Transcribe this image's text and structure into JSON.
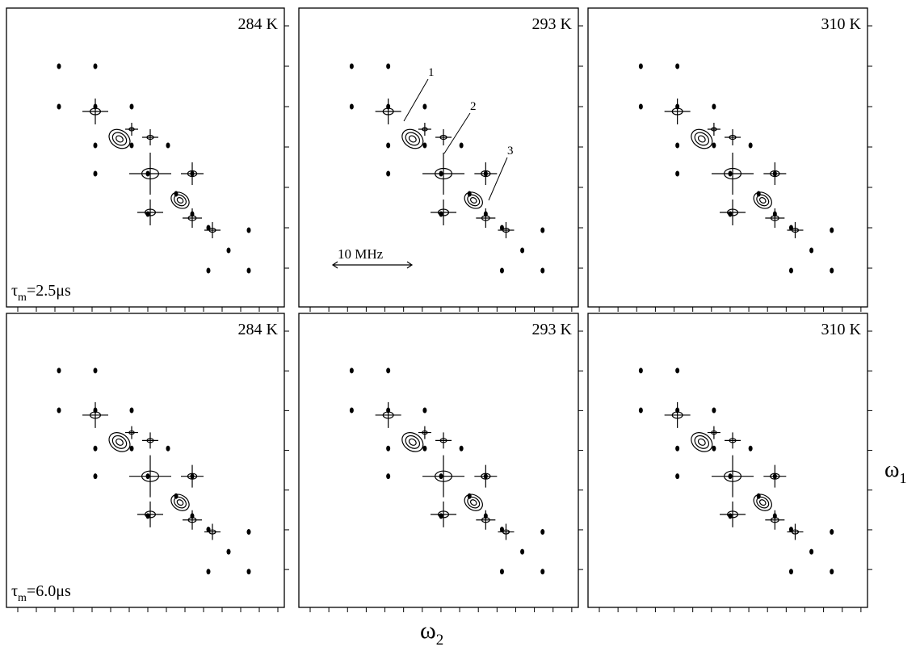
{
  "panels": [
    {
      "temperature": "284 K"
    },
    {
      "temperature": "293 K",
      "scale_bar": "10 MHz",
      "peak_labels": [
        "1",
        "2",
        "3"
      ]
    },
    {
      "temperature": "310 K"
    },
    {
      "temperature": "284 K"
    },
    {
      "temperature": "293 K"
    },
    {
      "temperature": "310 K"
    }
  ],
  "rows": [
    {
      "tau_symbol": "τ",
      "tau_sub": "m",
      "tau_value": "=2.5μs"
    },
    {
      "tau_symbol": "τ",
      "tau_sub": "m",
      "tau_value": "=6.0μs"
    }
  ],
  "axes": {
    "x_symbol": "ω",
    "x_sub": "2",
    "y_symbol": "ω",
    "y_sub": "1"
  }
}
